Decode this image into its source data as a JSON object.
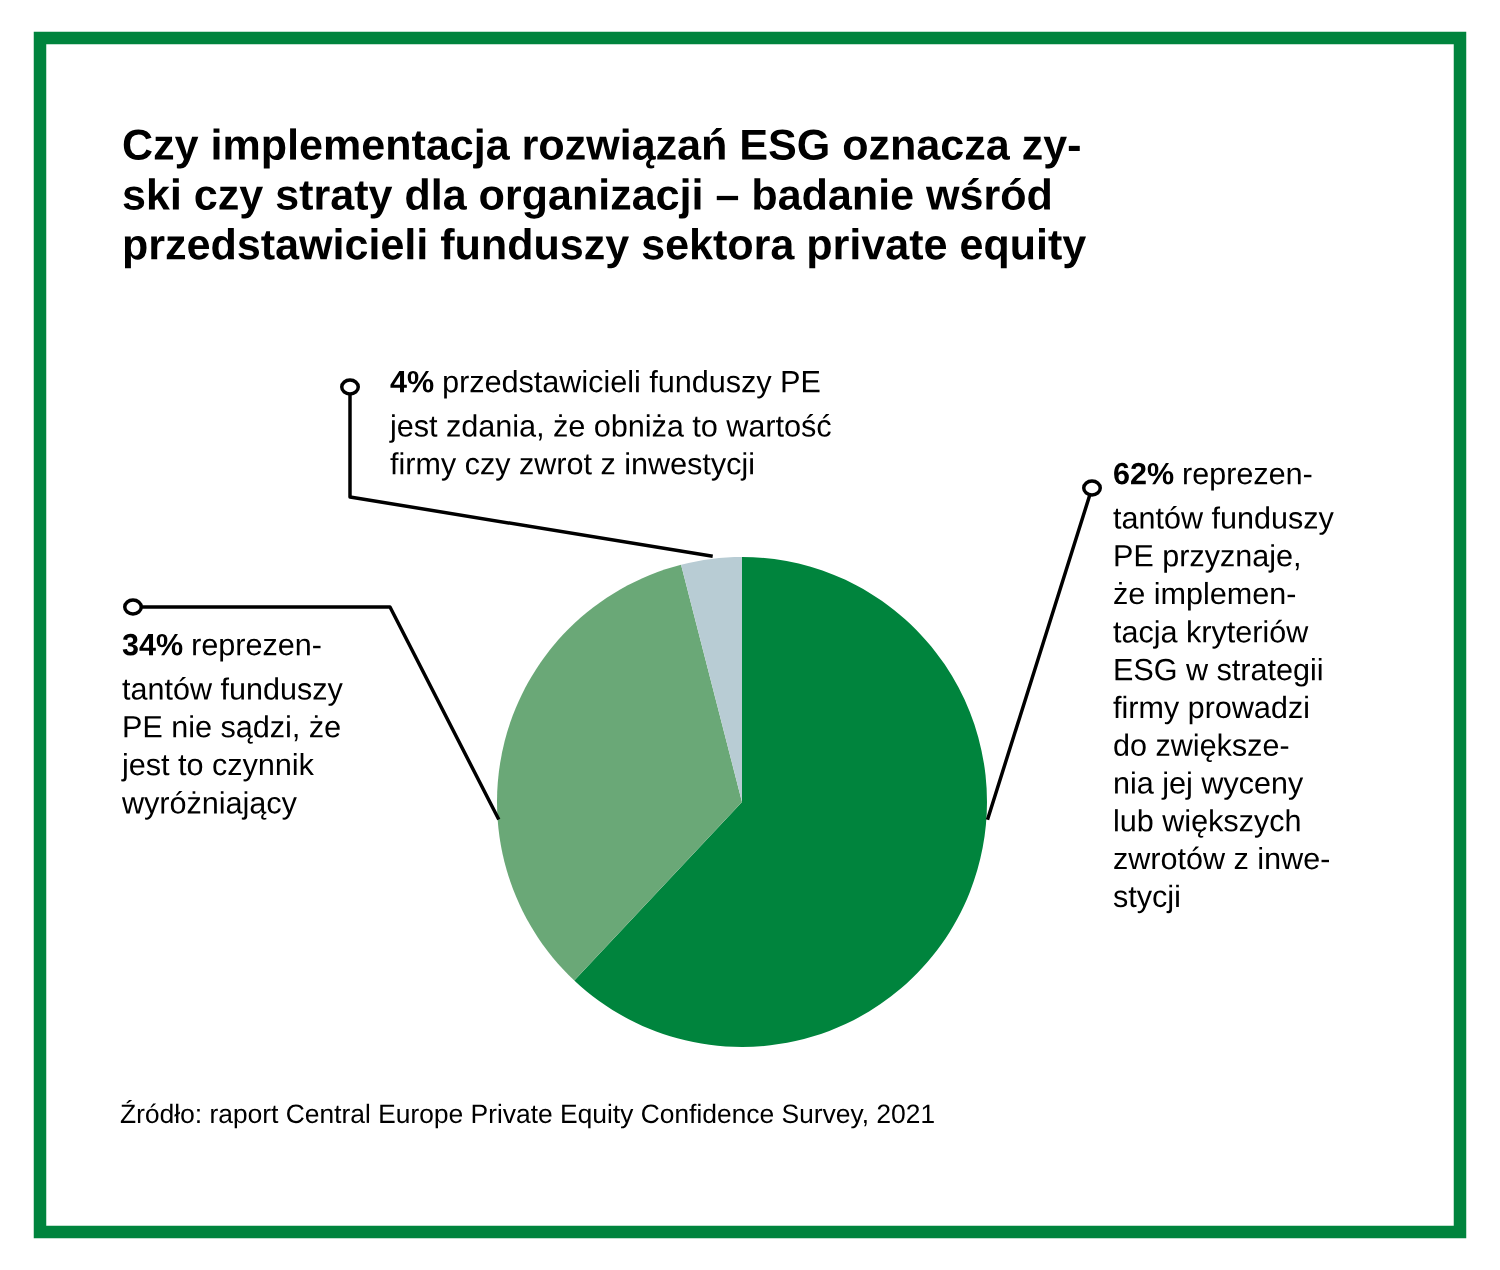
{
  "chart_data": {
    "type": "pie",
    "title": "Czy implementacja rozwiązań ESG oznacza zy-\nski czy straty dla organizacji – badanie wśród\nprzedstawicieli funduszy sektora private equity",
    "categories": [
      "reprezen-\ntantów funduszy\nPE przyznaje,\nże implemen-\ntacja kryteriów\nESG w strategii\nfirmy prowadzi\ndo zwiększe-\nnia jej wyceny\nlub większych\nzwrotów z inwe-\nstycji",
      "reprezen-\ntantów funduszy\nPE nie sądzi, że\njest to czynnik\nwyróżniający",
      "przedstawicieli funduszy PE\njest zdania, że obniża to wartość\nfirmy czy zwrot z inwestycji"
    ],
    "values": [
      62,
      34,
      4
    ],
    "colors": [
      "#00843d",
      "#6aa877",
      "#b8ccd4"
    ],
    "value_labels": [
      "62%",
      "34%",
      "4%"
    ],
    "annotations": [
      "Źródło: raport Central Europe Private Equity Confidence Survey, 2021"
    ]
  }
}
